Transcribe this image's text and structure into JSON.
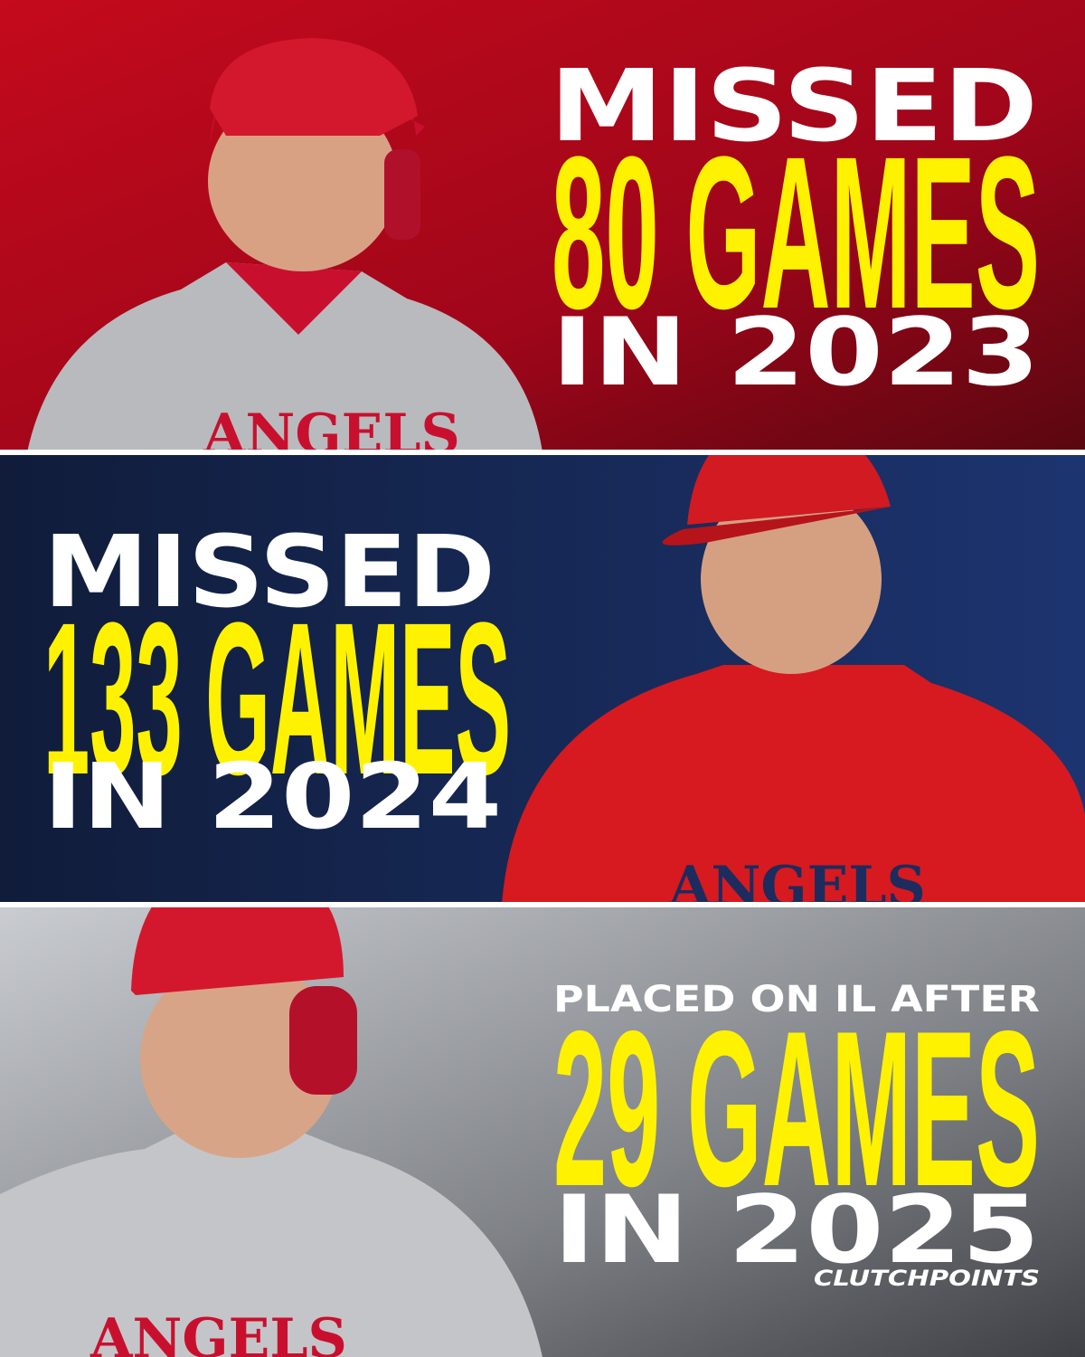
{
  "panels": [
    {
      "lines": [
        "MISSED",
        "80 GAMES",
        "IN 2023"
      ]
    },
    {
      "lines": [
        "MISSED",
        "133 GAMES",
        "IN 2024"
      ]
    },
    {
      "lines": [
        "PLACED ON IL AFTER",
        "29 GAMES",
        "IN 2025"
      ]
    }
  ],
  "brand": "CLUTCHPOINTS"
}
